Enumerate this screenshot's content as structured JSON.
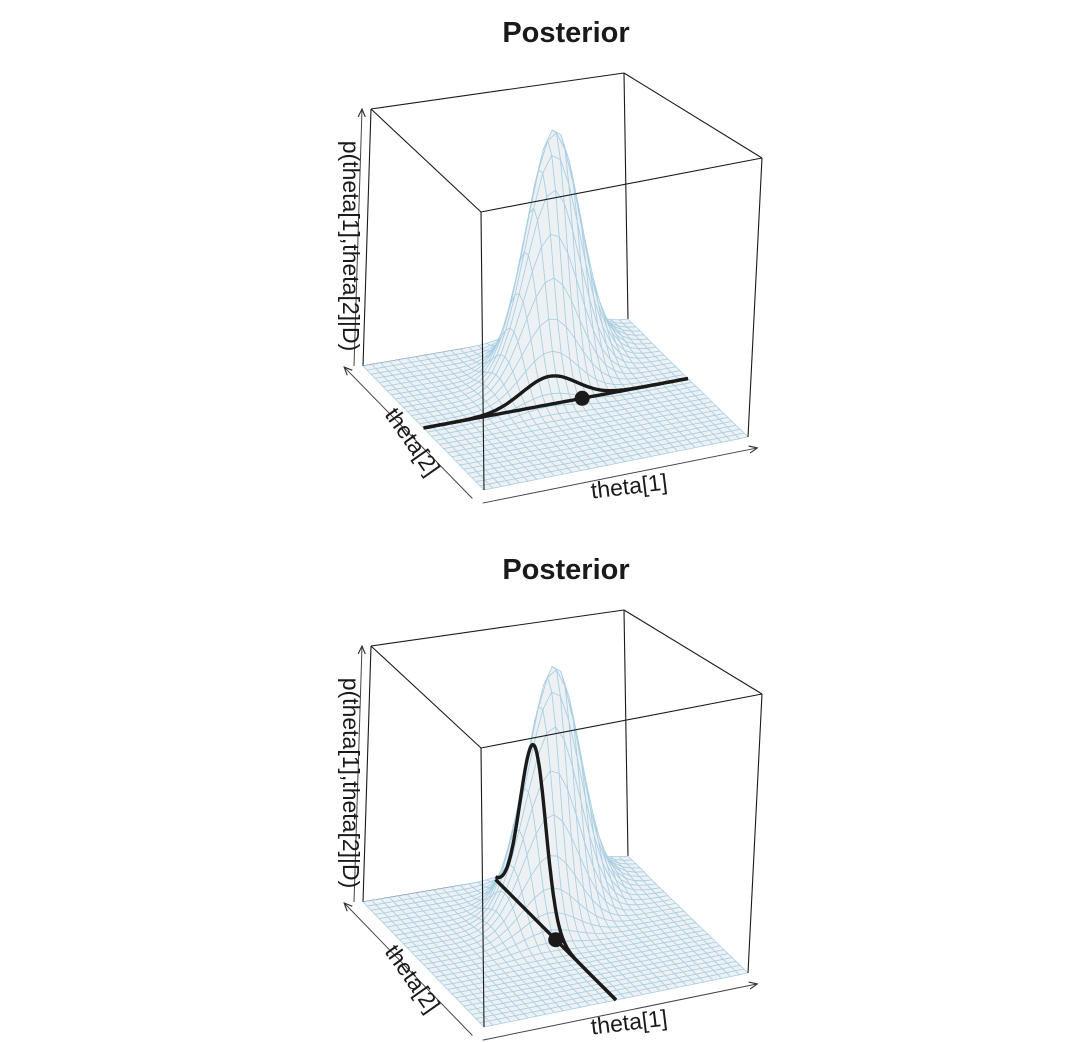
{
  "chart_data": [
    {
      "type": "surface",
      "title": "Posterior",
      "xlabel": "theta[1]",
      "ylabel": "theta[2]",
      "zlabel": "p(theta[1],theta[2]|D)",
      "surface": {
        "mu": [
          0.6,
          0.75
        ],
        "sd": [
          0.12,
          0.12
        ],
        "rho": 0.5,
        "grid": 30
      },
      "slice": {
        "axis": "theta[2]",
        "value": 0.5,
        "direction": "along theta[1]"
      },
      "point": {
        "theta1": 0.6,
        "theta2": 0.5
      },
      "colors": {
        "mesh": "#a9cfe3",
        "surface": "#eef1f3",
        "curve": "#1a1a1a",
        "box": "#1a1a1a"
      }
    },
    {
      "type": "surface",
      "title": "Posterior",
      "xlabel": "theta[1]",
      "ylabel": "theta[2]",
      "zlabel": "p(theta[1],theta[2]|D)",
      "surface": {
        "mu": [
          0.6,
          0.75
        ],
        "sd": [
          0.12,
          0.12
        ],
        "rho": 0.5,
        "grid": 30
      },
      "slice": {
        "axis": "theta[1]",
        "value": 0.5,
        "direction": "along theta[2]"
      },
      "point": {
        "theta1": 0.5,
        "theta2": 0.5
      },
      "colors": {
        "mesh": "#a9cfe3",
        "surface": "#eef1f3",
        "curve": "#1a1a1a",
        "box": "#1a1a1a"
      }
    }
  ]
}
